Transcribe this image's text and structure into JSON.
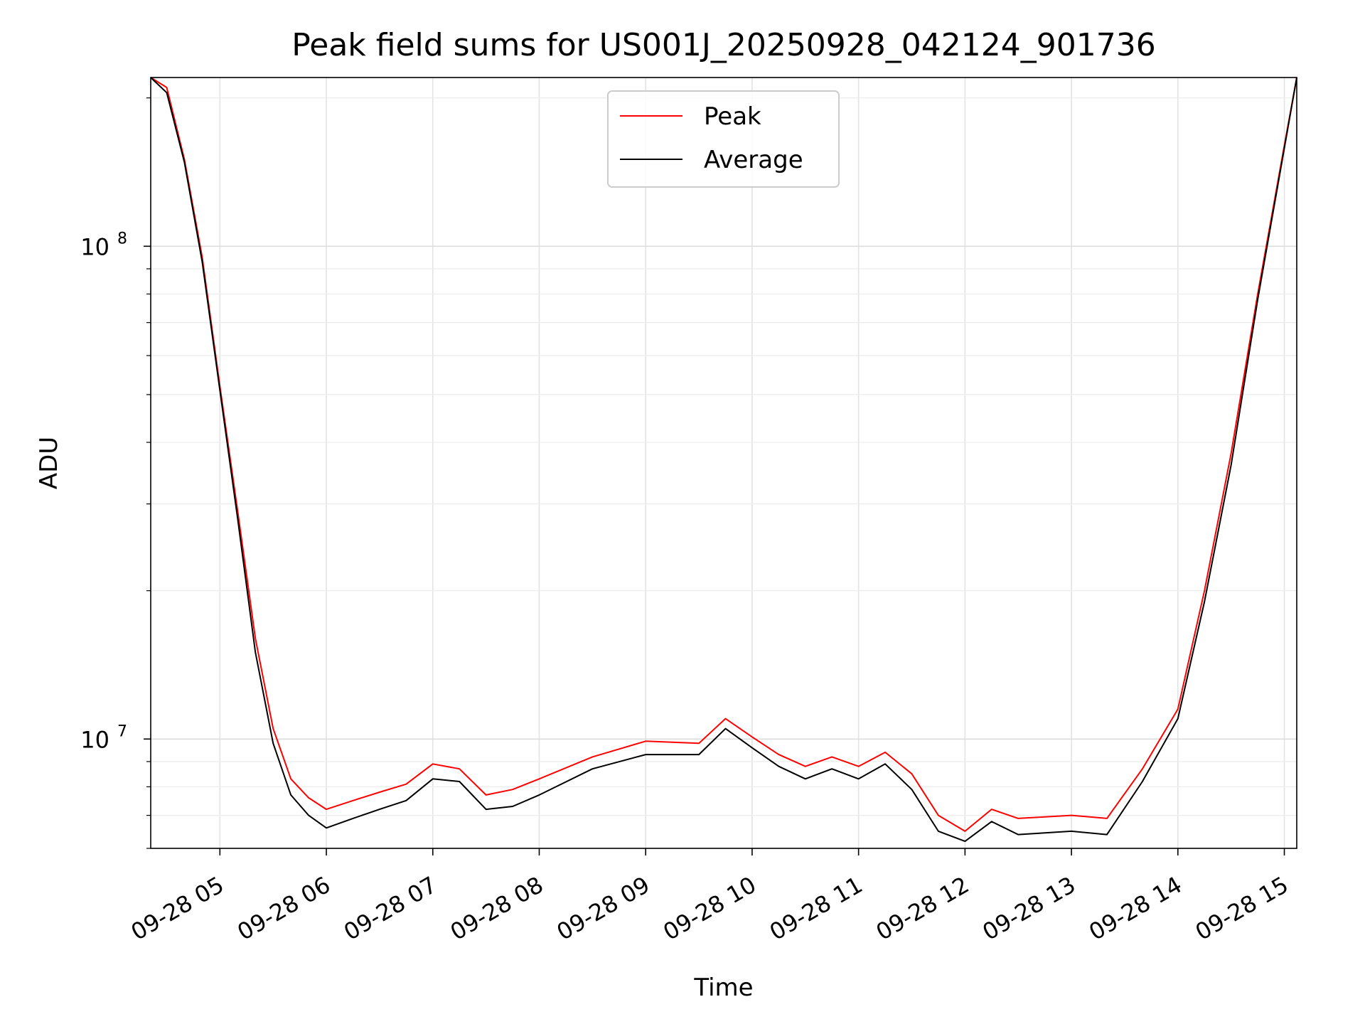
{
  "chart_data": {
    "type": "line",
    "title": "Peak field sums for US001J_20250928_042124_901736",
    "xlabel": "Time",
    "ylabel": "ADU",
    "y_scale": "log",
    "x_range": [
      "2025-09-28 04:21",
      "2025-09-28 15:07"
    ],
    "ylim": [
      6000000,
      220000000
    ],
    "grid": true,
    "grid_minor": true,
    "legend_position": "top-center",
    "x_ticks": [
      "09-28 05",
      "09-28 06",
      "09-28 07",
      "09-28 08",
      "09-28 09",
      "09-28 10",
      "09-28 11",
      "09-28 12",
      "09-28 13",
      "09-28 14",
      "09-28 15"
    ],
    "y_ticks": [
      {
        "value": 10000000,
        "base": "10",
        "exp": "7"
      },
      {
        "value": 100000000,
        "base": "10",
        "exp": "8"
      }
    ],
    "series": [
      {
        "name": "Peak",
        "color": "#ff0000",
        "x": [
          "2025-09-28 04:21",
          "2025-09-28 04:30",
          "2025-09-28 04:40",
          "2025-09-28 04:50",
          "2025-09-28 05:00",
          "2025-09-28 05:10",
          "2025-09-28 05:20",
          "2025-09-28 05:30",
          "2025-09-28 05:40",
          "2025-09-28 05:50",
          "2025-09-28 06:00",
          "2025-09-28 06:15",
          "2025-09-28 06:30",
          "2025-09-28 06:45",
          "2025-09-28 07:00",
          "2025-09-28 07:15",
          "2025-09-28 07:30",
          "2025-09-28 07:45",
          "2025-09-28 08:00",
          "2025-09-28 08:30",
          "2025-09-28 09:00",
          "2025-09-28 09:30",
          "2025-09-28 09:45",
          "2025-09-28 10:00",
          "2025-09-28 10:15",
          "2025-09-28 10:30",
          "2025-09-28 10:45",
          "2025-09-28 11:00",
          "2025-09-28 11:15",
          "2025-09-28 11:30",
          "2025-09-28 11:45",
          "2025-09-28 12:00",
          "2025-09-28 12:15",
          "2025-09-28 12:30",
          "2025-09-28 13:00",
          "2025-09-28 13:20",
          "2025-09-28 13:40",
          "2025-09-28 14:00",
          "2025-09-28 14:15",
          "2025-09-28 14:30",
          "2025-09-28 14:45",
          "2025-09-28 15:00",
          "2025-09-28 15:07"
        ],
        "y": [
          220000000,
          210000000,
          150000000,
          95000000,
          52000000,
          29000000,
          16000000,
          10500000,
          8300000,
          7600000,
          7200000,
          7500000,
          7800000,
          8100000,
          8900000,
          8700000,
          7700000,
          7900000,
          8300000,
          9200000,
          9900000,
          9800000,
          11000000,
          10100000,
          9300000,
          8800000,
          9200000,
          8800000,
          9400000,
          8500000,
          7000000,
          6500000,
          7200000,
          6900000,
          7000000,
          6900000,
          8700000,
          11500000,
          20000000,
          38000000,
          80000000,
          160000000,
          220000000
        ]
      },
      {
        "name": "Average",
        "color": "#000000",
        "x": [
          "2025-09-28 04:21",
          "2025-09-28 04:30",
          "2025-09-28 04:40",
          "2025-09-28 04:50",
          "2025-09-28 05:00",
          "2025-09-28 05:10",
          "2025-09-28 05:20",
          "2025-09-28 05:30",
          "2025-09-28 05:40",
          "2025-09-28 05:50",
          "2025-09-28 06:00",
          "2025-09-28 06:15",
          "2025-09-28 06:30",
          "2025-09-28 06:45",
          "2025-09-28 07:00",
          "2025-09-28 07:15",
          "2025-09-28 07:30",
          "2025-09-28 07:45",
          "2025-09-28 08:00",
          "2025-09-28 08:30",
          "2025-09-28 09:00",
          "2025-09-28 09:30",
          "2025-09-28 09:45",
          "2025-09-28 10:00",
          "2025-09-28 10:15",
          "2025-09-28 10:30",
          "2025-09-28 10:45",
          "2025-09-28 11:00",
          "2025-09-28 11:15",
          "2025-09-28 11:30",
          "2025-09-28 11:45",
          "2025-09-28 12:00",
          "2025-09-28 12:15",
          "2025-09-28 12:30",
          "2025-09-28 13:00",
          "2025-09-28 13:20",
          "2025-09-28 13:40",
          "2025-09-28 14:00",
          "2025-09-28 14:15",
          "2025-09-28 14:30",
          "2025-09-28 14:45",
          "2025-09-28 15:00",
          "2025-09-28 15:07"
        ],
        "y": [
          220000000,
          205000000,
          148000000,
          93000000,
          51000000,
          28000000,
          15000000,
          9800000,
          7700000,
          7000000,
          6600000,
          6900000,
          7200000,
          7500000,
          8300000,
          8200000,
          7200000,
          7300000,
          7700000,
          8700000,
          9300000,
          9300000,
          10500000,
          9600000,
          8800000,
          8300000,
          8700000,
          8300000,
          8900000,
          7900000,
          6500000,
          6200000,
          6800000,
          6400000,
          6500000,
          6400000,
          8200000,
          11000000,
          19000000,
          36000000,
          78000000,
          158000000,
          220000000
        ]
      }
    ]
  }
}
